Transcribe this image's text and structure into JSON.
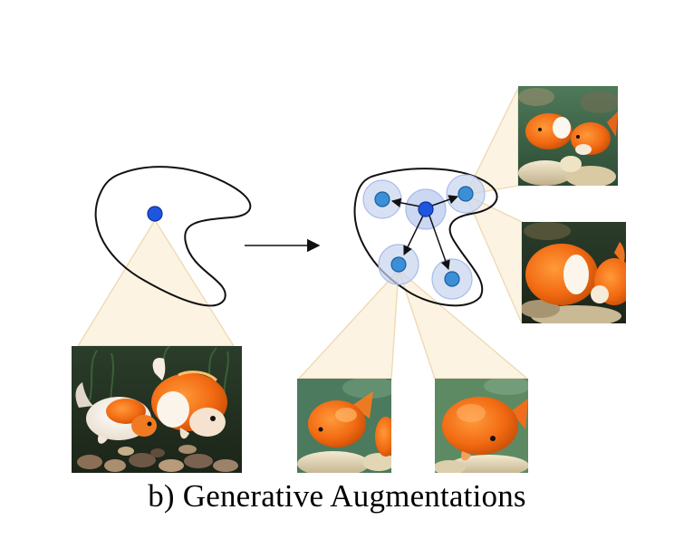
{
  "caption": "b) Generative Augmentations",
  "colors": {
    "outline": "#111111",
    "node_fill": "#3a8fd6",
    "node_halo": "#c8d4f0",
    "center_node": "#1f56e0",
    "projection_fill": "#fdf3e1",
    "projection_stroke": "#ecd7ad",
    "arrow": "#111111"
  },
  "icons": {
    "original_image": "goldfish-photo",
    "generated_images": [
      "goldfish-photo",
      "goldfish-photo",
      "goldfish-photo",
      "goldfish-photo"
    ]
  }
}
